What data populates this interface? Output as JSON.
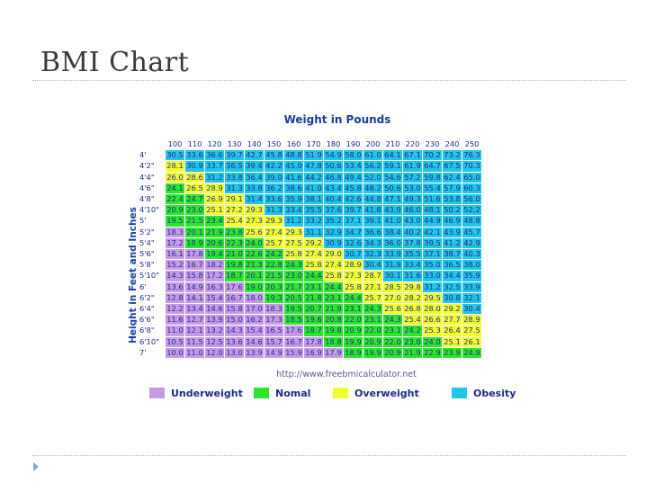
{
  "slide": {
    "title": "BMI Chart"
  },
  "colors": {
    "underweight": "#c79ae8",
    "normal": "#2ee52e",
    "overweight": "#f2ff2e",
    "obese": "#22c4e8",
    "title_blue": "#1a3da8"
  },
  "chart_data": {
    "type": "table",
    "title": "Weight in Pounds",
    "ylabel": "Height in Feet and Inches",
    "source": "http://www.freebmicalculator.net",
    "weights": [
      "100",
      "110",
      "120",
      "130",
      "140",
      "150",
      "160",
      "170",
      "180",
      "190",
      "200",
      "210",
      "220",
      "230",
      "240",
      "250"
    ],
    "heights": [
      "4'",
      "4'2\"",
      "4'4\"",
      "4'6\"",
      "4'8\"",
      "4'10\"",
      "5'",
      "5'2\"",
      "5'4\"",
      "5'6\"",
      "5'8\"",
      "5'10\"",
      "6'",
      "6'2\"",
      "6'4\"",
      "6'6\"",
      "6'8\"",
      "6'10\"",
      "7'"
    ],
    "values": [
      [
        "30.5",
        "33.6",
        "36.6",
        "39.7",
        "42.7",
        "45.8",
        "48.8",
        "51.9",
        "54.9",
        "58.0",
        "61.0",
        "64.1",
        "67.1",
        "70.2",
        "73.2",
        "76.3"
      ],
      [
        "28.1",
        "30.9",
        "33.7",
        "36.5",
        "39.4",
        "42.2",
        "45.0",
        "47.8",
        "50.6",
        "53.4",
        "56.2",
        "59.1",
        "61.9",
        "64.7",
        "67.5",
        "70.3"
      ],
      [
        "26.0",
        "28.6",
        "31.2",
        "33.8",
        "36.4",
        "39.0",
        "41.6",
        "44.2",
        "46.8",
        "49.4",
        "52.0",
        "54.6",
        "57.2",
        "59.8",
        "62.4",
        "65.0"
      ],
      [
        "24.1",
        "26.5",
        "28.9",
        "31.3",
        "33.8",
        "36.2",
        "38.6",
        "41.0",
        "43.4",
        "45.8",
        "48.2",
        "50.6",
        "53.0",
        "55.4",
        "57.9",
        "60.3"
      ],
      [
        "22.4",
        "24.7",
        "26.9",
        "29.1",
        "31.4",
        "33.6",
        "35.9",
        "38.1",
        "40.4",
        "42.6",
        "44.8",
        "47.1",
        "49.3",
        "51.6",
        "53.8",
        "56.0"
      ],
      [
        "20.9",
        "23.0",
        "25.1",
        "27.2",
        "29.3",
        "31.3",
        "33.4",
        "35.5",
        "37.6",
        "39.7",
        "41.8",
        "43.9",
        "46.0",
        "48.1",
        "50.2",
        "52.2"
      ],
      [
        "19.5",
        "21.5",
        "23.4",
        "25.4",
        "27.3",
        "29.3",
        "31.2",
        "33.2",
        "35.2",
        "37.1",
        "39.1",
        "41.0",
        "43.0",
        "44.9",
        "46.9",
        "48.8"
      ],
      [
        "18.3",
        "20.1",
        "21.9",
        "23.8",
        "25.6",
        "27.4",
        "29.3",
        "31.1",
        "32.9",
        "34.7",
        "36.6",
        "38.4",
        "40.2",
        "42.1",
        "43.9",
        "45.7"
      ],
      [
        "17.2",
        "18.9",
        "20.6",
        "22.3",
        "24.0",
        "25.7",
        "27.5",
        "29.2",
        "30.9",
        "32.6",
        "34.3",
        "36.0",
        "37.8",
        "39.5",
        "41.2",
        "42.9"
      ],
      [
        "16.1",
        "17.8",
        "19.4",
        "21.0",
        "22.6",
        "24.2",
        "25.8",
        "27.4",
        "29.0",
        "30.7",
        "32.3",
        "33.9",
        "35.5",
        "37.1",
        "38.7",
        "40.3"
      ],
      [
        "15.2",
        "16.7",
        "18.2",
        "19.8",
        "21.3",
        "22.8",
        "24.3",
        "25.8",
        "27.4",
        "28.9",
        "30.4",
        "31.9",
        "33.4",
        "35.0",
        "36.5",
        "38.0"
      ],
      [
        "14.3",
        "15.8",
        "17.2",
        "18.7",
        "20.1",
        "21.5",
        "23.0",
        "24.4",
        "25.8",
        "27.3",
        "28.7",
        "30.1",
        "31.6",
        "33.0",
        "34.4",
        "35.9"
      ],
      [
        "13.6",
        "14.9",
        "16.3",
        "17.6",
        "19.0",
        "20.3",
        "21.7",
        "23.1",
        "24.4",
        "25.8",
        "27.1",
        "28.5",
        "29.8",
        "31.2",
        "32.5",
        "33.9"
      ],
      [
        "12.8",
        "14.1",
        "15.4",
        "16.7",
        "18.0",
        "19.3",
        "20.5",
        "21.8",
        "23.1",
        "24.4",
        "25.7",
        "27.0",
        "28.2",
        "29.5",
        "30.8",
        "32.1"
      ],
      [
        "12.2",
        "13.4",
        "14.6",
        "15.8",
        "17.0",
        "18.3",
        "19.5",
        "20.7",
        "21.9",
        "23.1",
        "24.3",
        "25.6",
        "26.8",
        "28.0",
        "29.2",
        "30.4"
      ],
      [
        "11.6",
        "12.7",
        "13.9",
        "15.0",
        "16.2",
        "17.3",
        "18.5",
        "19.6",
        "20.8",
        "22.0",
        "23.1",
        "24.3",
        "25.4",
        "26.6",
        "27.7",
        "28.9"
      ],
      [
        "11.0",
        "12.1",
        "13.2",
        "14.3",
        "15.4",
        "16.5",
        "17.6",
        "18.7",
        "19.8",
        "20.9",
        "22.0",
        "23.1",
        "24.2",
        "25.3",
        "26.4",
        "27.5"
      ],
      [
        "10.5",
        "11.5",
        "12.5",
        "13.6",
        "14.6",
        "15.7",
        "16.7",
        "17.8",
        "18.8",
        "19.9",
        "20.9",
        "22.0",
        "23.0",
        "24.0",
        "25.1",
        "26.1"
      ],
      [
        "10.0",
        "11.0",
        "12.0",
        "13.0",
        "13.9",
        "14.9",
        "15.9",
        "16.9",
        "17.9",
        "18.9",
        "19.9",
        "20.9",
        "21.9",
        "22.9",
        "23.9",
        "24.9"
      ]
    ],
    "categories": [
      {
        "key": "underweight",
        "label": "Underweight"
      },
      {
        "key": "normal",
        "label": "Nomal"
      },
      {
        "key": "overweight",
        "label": "Overweight"
      },
      {
        "key": "obese",
        "label": "Obesity"
      }
    ]
  }
}
